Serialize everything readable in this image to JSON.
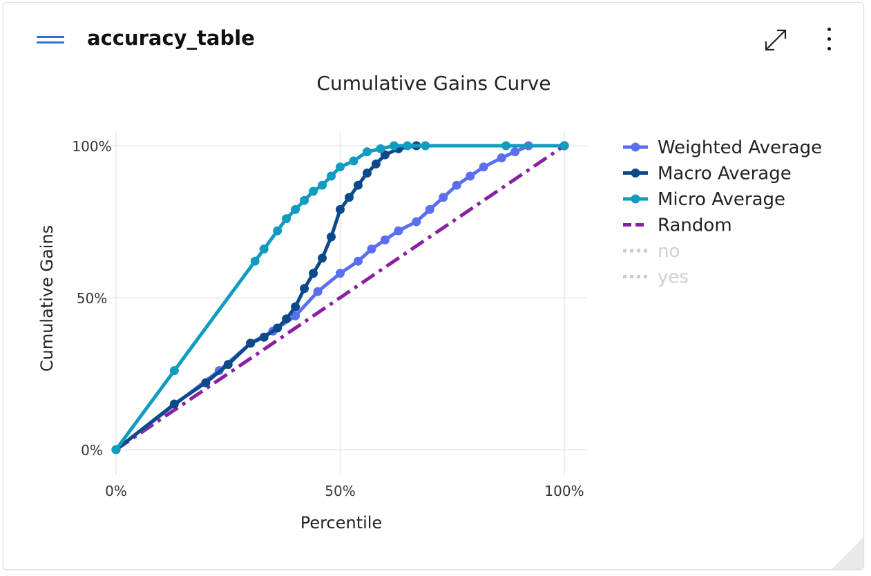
{
  "card": {
    "title": "accuracy_table",
    "menu_icon": "hamburger-icon",
    "expand_icon": "expand-icon",
    "more_icon": "more-vertical-icon"
  },
  "chart_data": {
    "type": "line",
    "title": "Cumulative Gains Curve",
    "xlabel": "Percentile",
    "ylabel": "Cumulative Gains",
    "xlim": [
      0,
      100
    ],
    "ylim": [
      0,
      100
    ],
    "x_ticks": [
      "0%",
      "50%",
      "100%"
    ],
    "y_ticks": [
      "0%",
      "50%",
      "100%"
    ],
    "grid": true,
    "legend_position": "right",
    "series": [
      {
        "name": "Weighted Average",
        "color": "#5a6ff0",
        "style": "solid",
        "markers": true,
        "visible": true,
        "points": [
          [
            0,
            0
          ],
          [
            23,
            26
          ],
          [
            30,
            35
          ],
          [
            35,
            39
          ],
          [
            40,
            44
          ],
          [
            45,
            52
          ],
          [
            50,
            58
          ],
          [
            54,
            62
          ],
          [
            57,
            66
          ],
          [
            60,
            69
          ],
          [
            63,
            72
          ],
          [
            67,
            75
          ],
          [
            70,
            79
          ],
          [
            73,
            83
          ],
          [
            76,
            87
          ],
          [
            79,
            90
          ],
          [
            82,
            93
          ],
          [
            86,
            96
          ],
          [
            89,
            98
          ],
          [
            92,
            100
          ],
          [
            100,
            100
          ]
        ]
      },
      {
        "name": "Macro Average",
        "color": "#0b4a8a",
        "style": "solid",
        "markers": true,
        "visible": true,
        "points": [
          [
            0,
            0
          ],
          [
            13,
            15
          ],
          [
            20,
            22
          ],
          [
            25,
            28
          ],
          [
            30,
            35
          ],
          [
            33,
            37
          ],
          [
            36,
            40
          ],
          [
            38,
            43
          ],
          [
            40,
            47
          ],
          [
            42,
            53
          ],
          [
            44,
            58
          ],
          [
            46,
            63
          ],
          [
            48,
            70
          ],
          [
            50,
            79
          ],
          [
            52,
            83
          ],
          [
            54,
            87
          ],
          [
            56,
            91
          ],
          [
            58,
            94
          ],
          [
            60,
            97
          ],
          [
            63,
            99
          ],
          [
            67,
            100
          ],
          [
            100,
            100
          ]
        ]
      },
      {
        "name": "Micro Average",
        "color": "#109cc0",
        "style": "solid",
        "markers": true,
        "visible": true,
        "points": [
          [
            0,
            0
          ],
          [
            13,
            26
          ],
          [
            31,
            62
          ],
          [
            33,
            66
          ],
          [
            36,
            72
          ],
          [
            38,
            76
          ],
          [
            40,
            79
          ],
          [
            42,
            82
          ],
          [
            44,
            85
          ],
          [
            46,
            87
          ],
          [
            48,
            90
          ],
          [
            50,
            93
          ],
          [
            53,
            95
          ],
          [
            56,
            98
          ],
          [
            59,
            99
          ],
          [
            62,
            100
          ],
          [
            65,
            100
          ],
          [
            69,
            100
          ],
          [
            87,
            100
          ],
          [
            100,
            100
          ]
        ]
      },
      {
        "name": "Random",
        "color": "#8a1fa5",
        "style": "dashdot",
        "markers": false,
        "visible": true,
        "points": [
          [
            0,
            0
          ],
          [
            100,
            100
          ]
        ]
      },
      {
        "name": "no",
        "color": "#cccccc",
        "style": "dotted",
        "markers": false,
        "visible": false,
        "points": []
      },
      {
        "name": "yes",
        "color": "#cccccc",
        "style": "dotted",
        "markers": false,
        "visible": false,
        "points": []
      }
    ]
  }
}
